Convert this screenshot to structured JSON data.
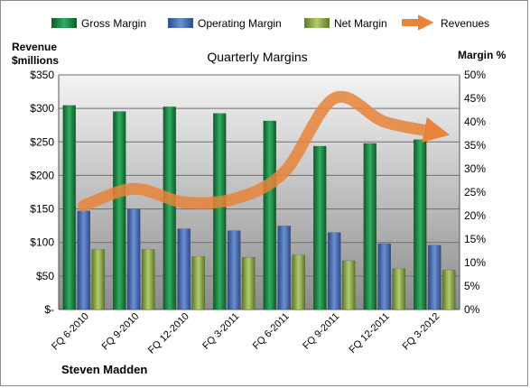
{
  "chart_data": {
    "type": "bar",
    "title": "Quarterly Margins",
    "footer": "Steven Madden",
    "categories": [
      "FQ 6-2010",
      "FQ 9-2010",
      "FQ 12-2010",
      "FQ 3-2011",
      "FQ 6-2011",
      "FQ 9-2011",
      "FQ 12-2011",
      "FQ 3-2012"
    ],
    "y_left": {
      "label_line1": "Revenue",
      "label_line2": "$millions",
      "range": [
        0,
        350
      ],
      "ticks": [
        0,
        50,
        100,
        150,
        200,
        250,
        300,
        350
      ],
      "tick_labels": [
        "$-",
        "$50",
        "$100",
        "$150",
        "$200",
        "$250",
        "$300",
        "$350"
      ]
    },
    "y_right": {
      "label": "Margin %",
      "range": [
        0,
        50
      ],
      "ticks": [
        0,
        5,
        10,
        15,
        20,
        25,
        30,
        35,
        40,
        45,
        50
      ],
      "tick_labels": [
        "0%",
        "5%",
        "10%",
        "15%",
        "20%",
        "25%",
        "30%",
        "35%",
        "40%",
        "45%",
        "50%"
      ]
    },
    "series": [
      {
        "name": "Gross Margin",
        "type": "bar",
        "axis": "right",
        "color": "#1e8a4a",
        "values": [
          43.5,
          42.2,
          43.2,
          41.8,
          40.2,
          34.8,
          35.4,
          36.2
        ]
      },
      {
        "name": "Operating Margin",
        "type": "bar",
        "axis": "right",
        "color": "#4a6fb5",
        "values": [
          21.0,
          21.4,
          17.2,
          16.8,
          17.8,
          16.4,
          14.0,
          13.7
        ]
      },
      {
        "name": "Net Margin",
        "type": "bar",
        "axis": "right",
        "color": "#8aa648",
        "values": [
          12.8,
          12.8,
          11.3,
          11.1,
          11.6,
          10.4,
          8.7,
          8.4
        ]
      },
      {
        "name": "Revenues",
        "type": "line",
        "axis": "left",
        "color": "#e8843a",
        "values": [
          155,
          180,
          160,
          165,
          205,
          315,
          280,
          265
        ]
      }
    ],
    "legend_position": "top",
    "grid": true
  }
}
